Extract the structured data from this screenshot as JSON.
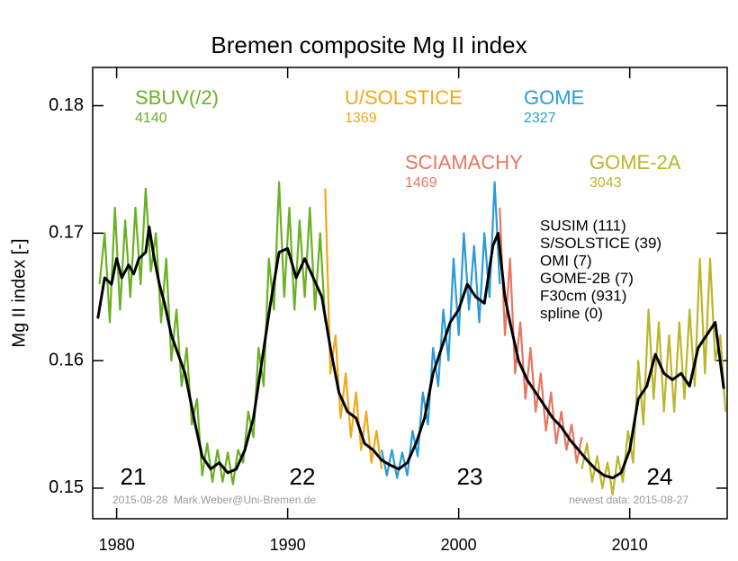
{
  "chart_data": {
    "type": "line",
    "title": "Bremen composite Mg II index",
    "y_label": "Mg II index [-]",
    "xlim": [
      1978.6,
      2015.7
    ],
    "ylim": [
      0.1476,
      0.183
    ],
    "xticks": [
      1980,
      1990,
      2000,
      2010
    ],
    "yticks": [
      0.15,
      0.16,
      0.17,
      0.18
    ],
    "series": [
      {
        "name": "SBUV(/2)",
        "count": 4140,
        "color": "#6ab023",
        "x": [
          1979.0,
          1979.3,
          1979.6,
          1979.9,
          1980.2,
          1980.5,
          1980.8,
          1981.1,
          1981.4,
          1981.7,
          1982.0,
          1982.3,
          1982.6,
          1982.9,
          1983.2,
          1983.5,
          1983.8,
          1984.1,
          1984.4,
          1984.7,
          1985.0,
          1985.3,
          1985.6,
          1985.9,
          1986.2,
          1986.5,
          1986.8,
          1987.1,
          1987.4,
          1987.7,
          1988.0,
          1988.3,
          1988.6,
          1988.9,
          1989.2,
          1989.5,
          1989.8,
          1990.1,
          1990.4,
          1990.7,
          1991.0,
          1991.3,
          1991.6,
          1991.9,
          1992.2
        ],
        "values": [
          0.166,
          0.17,
          0.163,
          0.172,
          0.164,
          0.171,
          0.165,
          0.172,
          0.166,
          0.1735,
          0.167,
          0.17,
          0.163,
          0.168,
          0.16,
          0.164,
          0.158,
          0.161,
          0.155,
          0.157,
          0.151,
          0.1535,
          0.1505,
          0.153,
          0.1505,
          0.1528,
          0.1503,
          0.153,
          0.152,
          0.156,
          0.154,
          0.161,
          0.158,
          0.168,
          0.164,
          0.174,
          0.165,
          0.172,
          0.164,
          0.171,
          0.165,
          0.172,
          0.164,
          0.17,
          0.163
        ]
      },
      {
        "name": "U/SOLSTICE",
        "count": 1369,
        "color": "#f0a818",
        "x": [
          1992.2,
          1992.5,
          1992.8,
          1993.1,
          1993.4,
          1993.7,
          1994.0,
          1994.3,
          1994.6,
          1994.9,
          1995.2,
          1995.5
        ],
        "values": [
          0.1735,
          0.159,
          0.162,
          0.1555,
          0.159,
          0.154,
          0.1575,
          0.153,
          0.156,
          0.152,
          0.1545,
          0.1515
        ]
      },
      {
        "name": "GOME",
        "count": 2327,
        "color": "#2c9ad8",
        "x": [
          1995.5,
          1995.8,
          1996.1,
          1996.4,
          1996.7,
          1997.0,
          1997.3,
          1997.6,
          1997.9,
          1998.2,
          1998.5,
          1998.8,
          1999.1,
          1999.4,
          1999.7,
          2000.0,
          2000.3,
          2000.6,
          2000.9,
          2001.2,
          2001.5,
          2001.8,
          2002.1,
          2002.4
        ],
        "values": [
          0.153,
          0.151,
          0.153,
          0.1508,
          0.1528,
          0.151,
          0.1545,
          0.1525,
          0.1575,
          0.155,
          0.161,
          0.158,
          0.164,
          0.16,
          0.168,
          0.162,
          0.17,
          0.164,
          0.169,
          0.163,
          0.17,
          0.165,
          0.174,
          0.166
        ]
      },
      {
        "name": "SCIAMACHY",
        "count": 1469,
        "color": "#e8755f",
        "x": [
          2002.4,
          2002.7,
          2003.0,
          2003.3,
          2003.6,
          2003.9,
          2004.2,
          2004.5,
          2004.8,
          2005.1,
          2005.4,
          2005.7,
          2006.0,
          2006.3,
          2006.6,
          2006.9,
          2007.2
        ],
        "values": [
          0.172,
          0.162,
          0.168,
          0.159,
          0.163,
          0.157,
          0.161,
          0.156,
          0.159,
          0.1545,
          0.1575,
          0.1535,
          0.156,
          0.153,
          0.155,
          0.152,
          0.154
        ]
      },
      {
        "name": "GOME-2A",
        "count": 3043,
        "color": "#bdb52a",
        "x": [
          2007.2,
          2007.5,
          2007.8,
          2008.1,
          2008.4,
          2008.7,
          2009.0,
          2009.3,
          2009.6,
          2009.9,
          2010.2,
          2010.5,
          2010.8,
          2011.1,
          2011.4,
          2011.7,
          2012.0,
          2012.3,
          2012.6,
          2012.9,
          2013.2,
          2013.5,
          2013.8,
          2014.1,
          2014.4,
          2014.7,
          2015.0,
          2015.3,
          2015.6
        ],
        "values": [
          0.1515,
          0.1535,
          0.1505,
          0.1525,
          0.15,
          0.152,
          0.1495,
          0.1525,
          0.1505,
          0.1545,
          0.152,
          0.16,
          0.155,
          0.164,
          0.157,
          0.163,
          0.156,
          0.162,
          0.156,
          0.163,
          0.157,
          0.164,
          0.158,
          0.168,
          0.159,
          0.168,
          0.16,
          0.162,
          0.156
        ]
      }
    ],
    "smooth": {
      "color": "#000000",
      "x": [
        1978.9,
        1979.3,
        1979.7,
        1980.0,
        1980.3,
        1980.7,
        1981.0,
        1981.3,
        1981.7,
        1981.9,
        1982.2,
        1982.5,
        1982.8,
        1983.2,
        1983.6,
        1984.0,
        1984.3,
        1984.6,
        1985.0,
        1985.5,
        1986.0,
        1986.5,
        1987.0,
        1987.5,
        1988.0,
        1988.5,
        1989.0,
        1989.5,
        1990.0,
        1990.5,
        1991.0,
        1991.5,
        1992.0,
        1992.5,
        1993.0,
        1993.5,
        1994.0,
        1994.5,
        1995.0,
        1995.5,
        1996.0,
        1996.5,
        1997.0,
        1997.5,
        1998.0,
        1998.5,
        1999.0,
        1999.5,
        2000.0,
        2000.5,
        2001.0,
        2001.5,
        2002.0,
        2002.3,
        2002.7,
        2003.0,
        2003.5,
        2004.0,
        2004.5,
        2005.0,
        2005.5,
        2006.0,
        2006.5,
        2007.0,
        2007.5,
        2008.0,
        2008.5,
        2009.0,
        2009.5,
        2010.0,
        2010.5,
        2011.0,
        2011.5,
        2012.0,
        2012.5,
        2013.0,
        2013.5,
        2014.0,
        2014.5,
        2015.0,
        2015.5
      ],
      "values": [
        0.1633,
        0.1665,
        0.166,
        0.168,
        0.1665,
        0.1675,
        0.1668,
        0.168,
        0.1685,
        0.1705,
        0.168,
        0.166,
        0.1645,
        0.162,
        0.1605,
        0.159,
        0.157,
        0.155,
        0.1525,
        0.1515,
        0.152,
        0.1512,
        0.1515,
        0.153,
        0.1555,
        0.16,
        0.1645,
        0.1685,
        0.1688,
        0.1665,
        0.168,
        0.1665,
        0.165,
        0.161,
        0.1575,
        0.156,
        0.1555,
        0.1535,
        0.153,
        0.1522,
        0.1518,
        0.1515,
        0.152,
        0.1535,
        0.1555,
        0.159,
        0.161,
        0.163,
        0.164,
        0.166,
        0.165,
        0.1645,
        0.169,
        0.17,
        0.165,
        0.163,
        0.16,
        0.1585,
        0.1575,
        0.1565,
        0.1555,
        0.1548,
        0.1538,
        0.153,
        0.1522,
        0.1515,
        0.151,
        0.1508,
        0.1512,
        0.153,
        0.157,
        0.158,
        0.1605,
        0.159,
        0.1585,
        0.159,
        0.158,
        0.161,
        0.162,
        0.163,
        0.1578
      ]
    },
    "other_sources": [
      "SUSIM (111)",
      "S/SOLSTICE (39)",
      "OMI (7)",
      "GOME-2B (7)",
      "F30cm (931)",
      "spline (0)"
    ],
    "cycles": [
      "21",
      "22",
      "23",
      "24"
    ],
    "footer_left": "2015-08-28  Mark.Weber@Uni-Bremen.de",
    "footer_right": "newest data: 2015-08-27"
  }
}
